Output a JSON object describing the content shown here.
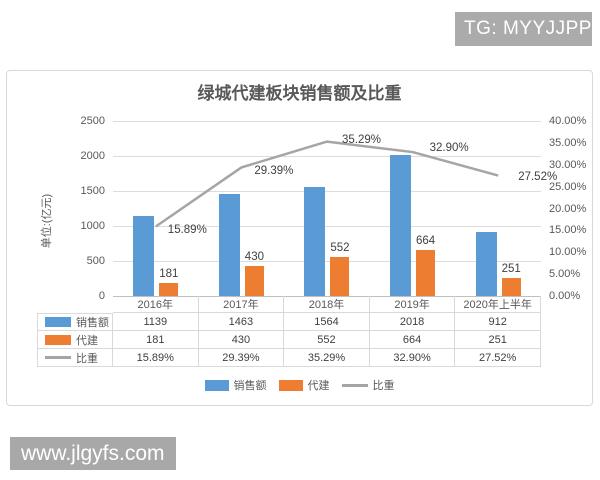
{
  "badge": {
    "text": "TG: MYYJJPP"
  },
  "watermark": {
    "text": "www.jlgyfs.com"
  },
  "chart_data": {
    "type": "bar+line combo with data table",
    "title": "绿城代建板块销售额及比重",
    "y_axis_title": "单位:(亿元)",
    "categories": [
      "2016年",
      "2017年",
      "2018年",
      "2019年",
      "2020年上半年"
    ],
    "series": [
      {
        "name": "销售额",
        "type": "bar",
        "axis": "left",
        "color": "#5B9BD5",
        "values": [
          1139,
          1463,
          1564,
          2018,
          912
        ],
        "display": [
          "1139",
          "1463",
          "1564",
          "2018",
          "912"
        ]
      },
      {
        "name": "代建",
        "type": "bar",
        "axis": "left",
        "color": "#ED7D31",
        "values": [
          181,
          430,
          552,
          664,
          251
        ],
        "display": [
          "181",
          "430",
          "552",
          "664",
          "251"
        ]
      },
      {
        "name": "比重",
        "type": "line",
        "axis": "right",
        "color": "#A5A5A5",
        "values": [
          15.89,
          29.39,
          35.29,
          32.9,
          27.52
        ],
        "display": [
          "15.89%",
          "29.39%",
          "35.29%",
          "32.90%",
          "27.52%"
        ]
      }
    ],
    "left_axis": {
      "min": 0,
      "max": 2500,
      "ticks": [
        "2500",
        "2000",
        "1500",
        "1000",
        "500",
        "0"
      ]
    },
    "right_axis": {
      "min": 0,
      "max": 40,
      "ticks": [
        "40.00%",
        "35.00%",
        "30.00%",
        "25.00%",
        "20.00%",
        "15.00%",
        "10.00%",
        "5.00%",
        "0.00%"
      ]
    },
    "legend": [
      "销售额",
      "代建",
      "比重"
    ],
    "grid": "horizontal",
    "legend_position": "bottom"
  }
}
